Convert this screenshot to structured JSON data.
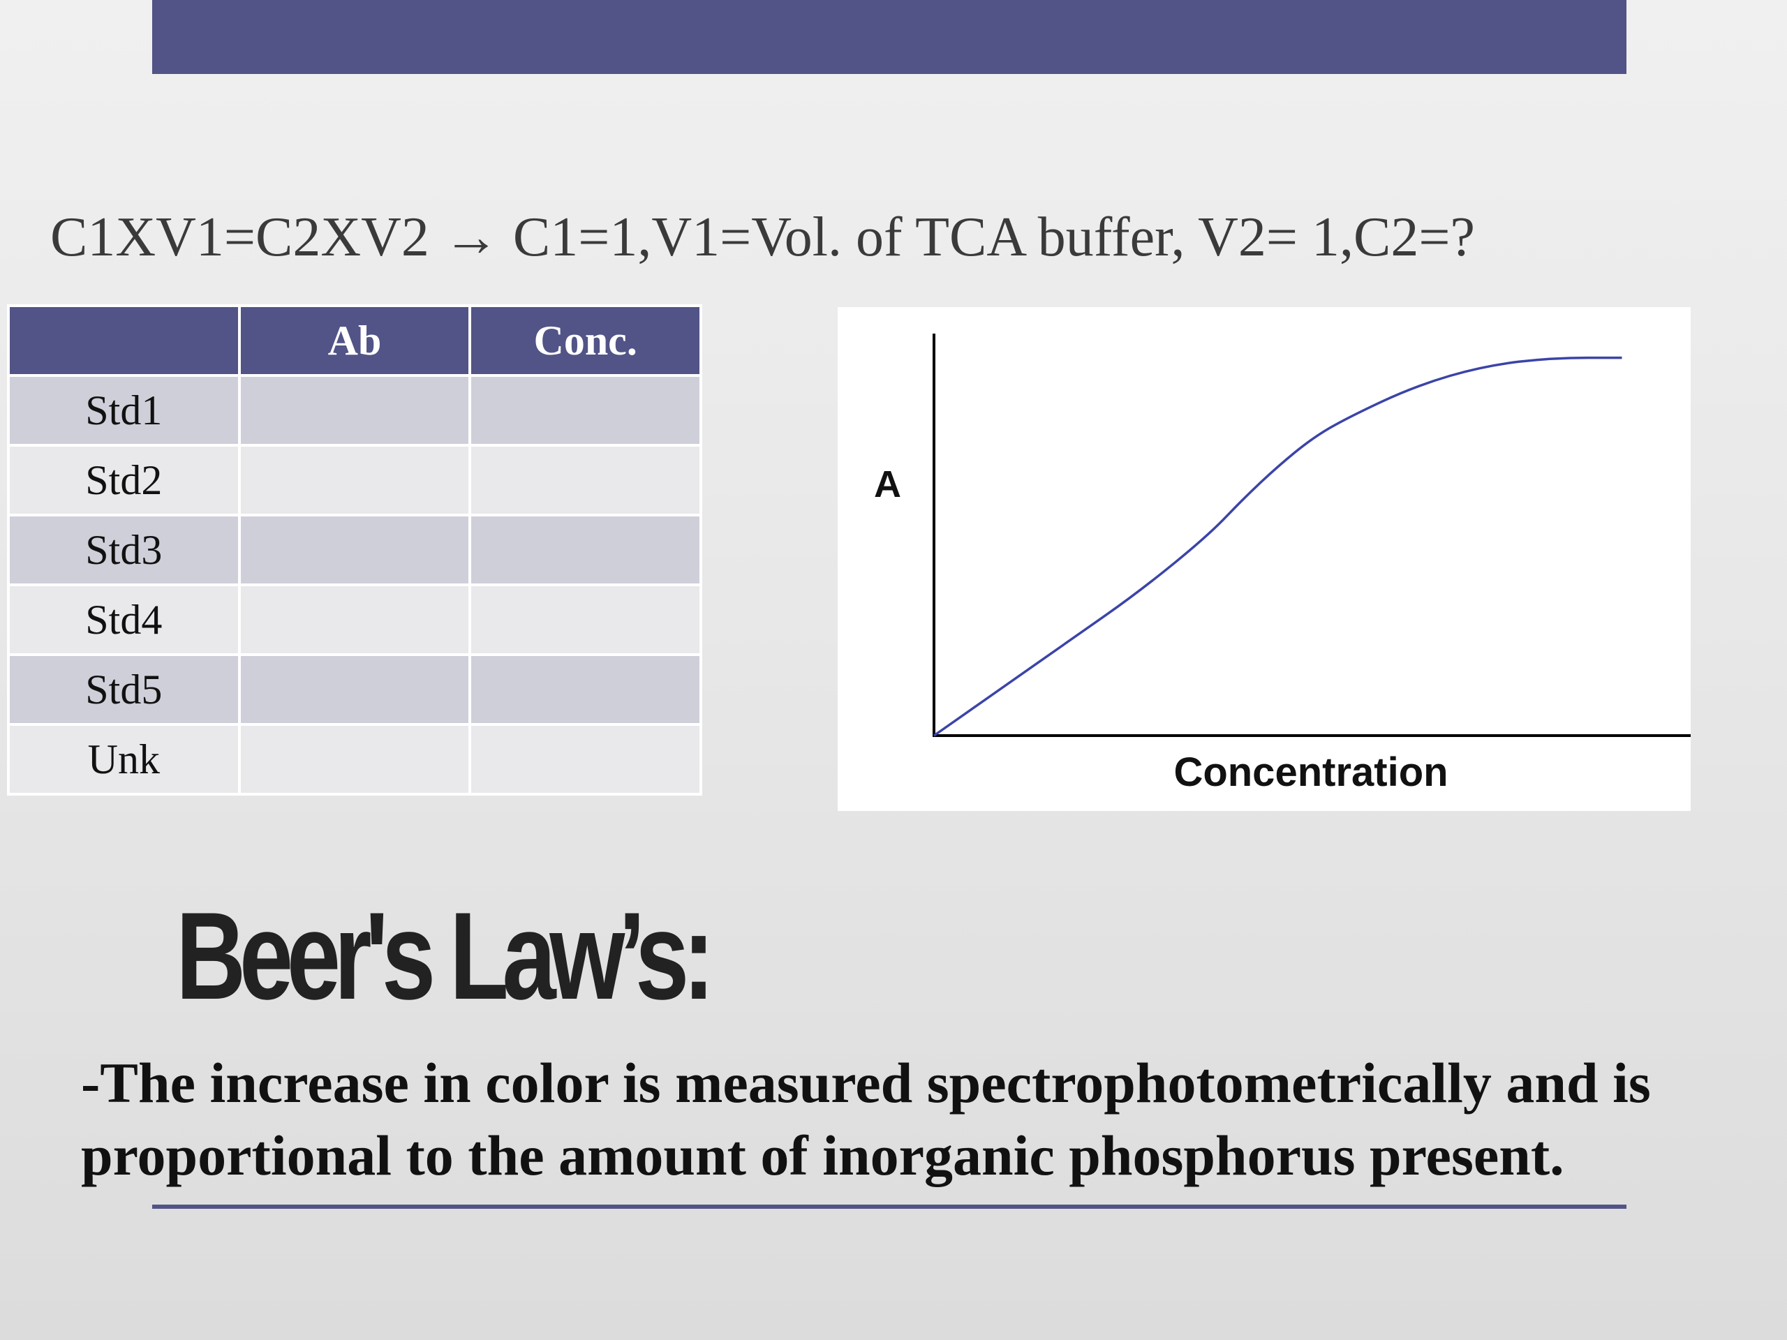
{
  "slide": {
    "formula": "C1XV1=C2XV2 → C1=1,V1=Vol. of TCA buffer, V2= 1,C2=?",
    "accent_color": "#525386"
  },
  "table": {
    "headers": [
      "",
      "Ab",
      "Conc."
    ],
    "rows": [
      {
        "label": "Std1",
        "ab": "",
        "conc": ""
      },
      {
        "label": "Std2",
        "ab": "",
        "conc": ""
      },
      {
        "label": "Std3",
        "ab": "",
        "conc": ""
      },
      {
        "label": "Std4",
        "ab": "",
        "conc": ""
      },
      {
        "label": "Std5",
        "ab": "",
        "conc": ""
      },
      {
        "label": "Unk",
        "ab": "",
        "conc": ""
      }
    ]
  },
  "chart_data": {
    "type": "line",
    "title": "",
    "xlabel": "Concentration",
    "ylabel": "A",
    "grid": false,
    "x": [
      0,
      0.1,
      0.2,
      0.3,
      0.4,
      0.45,
      0.5,
      0.55,
      0.6,
      0.7,
      0.8,
      0.9,
      1.0
    ],
    "series": [
      {
        "values": [
          0,
          0.12,
          0.24,
          0.36,
          0.5,
          0.59,
          0.67,
          0.74,
          0.79,
          0.87,
          0.92,
          0.94,
          0.94
        ],
        "color": "#3b44a8"
      }
    ],
    "xlim": [
      0,
      1.1
    ],
    "ylim": [
      0,
      1.0
    ]
  },
  "law": {
    "title": "Beer's Law’s:",
    "text": "-The increase in color is measured spectrophotometrically and is proportional to the amount of inorganic phosphorus present."
  }
}
